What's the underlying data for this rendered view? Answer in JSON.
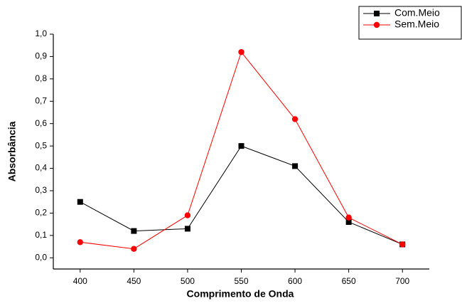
{
  "chart_data": {
    "type": "line",
    "xlabel": "Comprimento de Onda",
    "ylabel": "Absorbância",
    "x": [
      400,
      450,
      500,
      550,
      600,
      650,
      700
    ],
    "series": [
      {
        "name": "Com.Meio",
        "color": "#000000",
        "marker": "square",
        "values": [
          0.25,
          0.12,
          0.13,
          0.5,
          0.41,
          0.16,
          0.06
        ]
      },
      {
        "name": "Sem.Meio",
        "color": "#ff0000",
        "marker": "circle",
        "values": [
          0.07,
          0.04,
          0.19,
          0.92,
          0.62,
          0.18,
          0.06
        ]
      }
    ],
    "xlim": [
      375,
      725
    ],
    "xticks": [
      400,
      450,
      500,
      550,
      600,
      650,
      700
    ],
    "ylim": [
      -0.05,
      1.0
    ],
    "yticks": [
      {
        "value": 0,
        "label": "0,0"
      },
      {
        "value": 0.1,
        "label": "0,1"
      },
      {
        "value": 0.2,
        "label": "0,2"
      },
      {
        "value": 0.3,
        "label": "0,3"
      },
      {
        "value": 0.4,
        "label": "0,4"
      },
      {
        "value": 0.5,
        "label": "0,5"
      },
      {
        "value": 0.6,
        "label": "0,6"
      },
      {
        "value": 0.7,
        "label": "0,7"
      },
      {
        "value": 0.8,
        "label": "0,8"
      },
      {
        "value": 0.9,
        "label": "0,9"
      },
      {
        "value": 1.0,
        "label": "1,0"
      }
    ],
    "grid": false,
    "legend": "upper right"
  }
}
